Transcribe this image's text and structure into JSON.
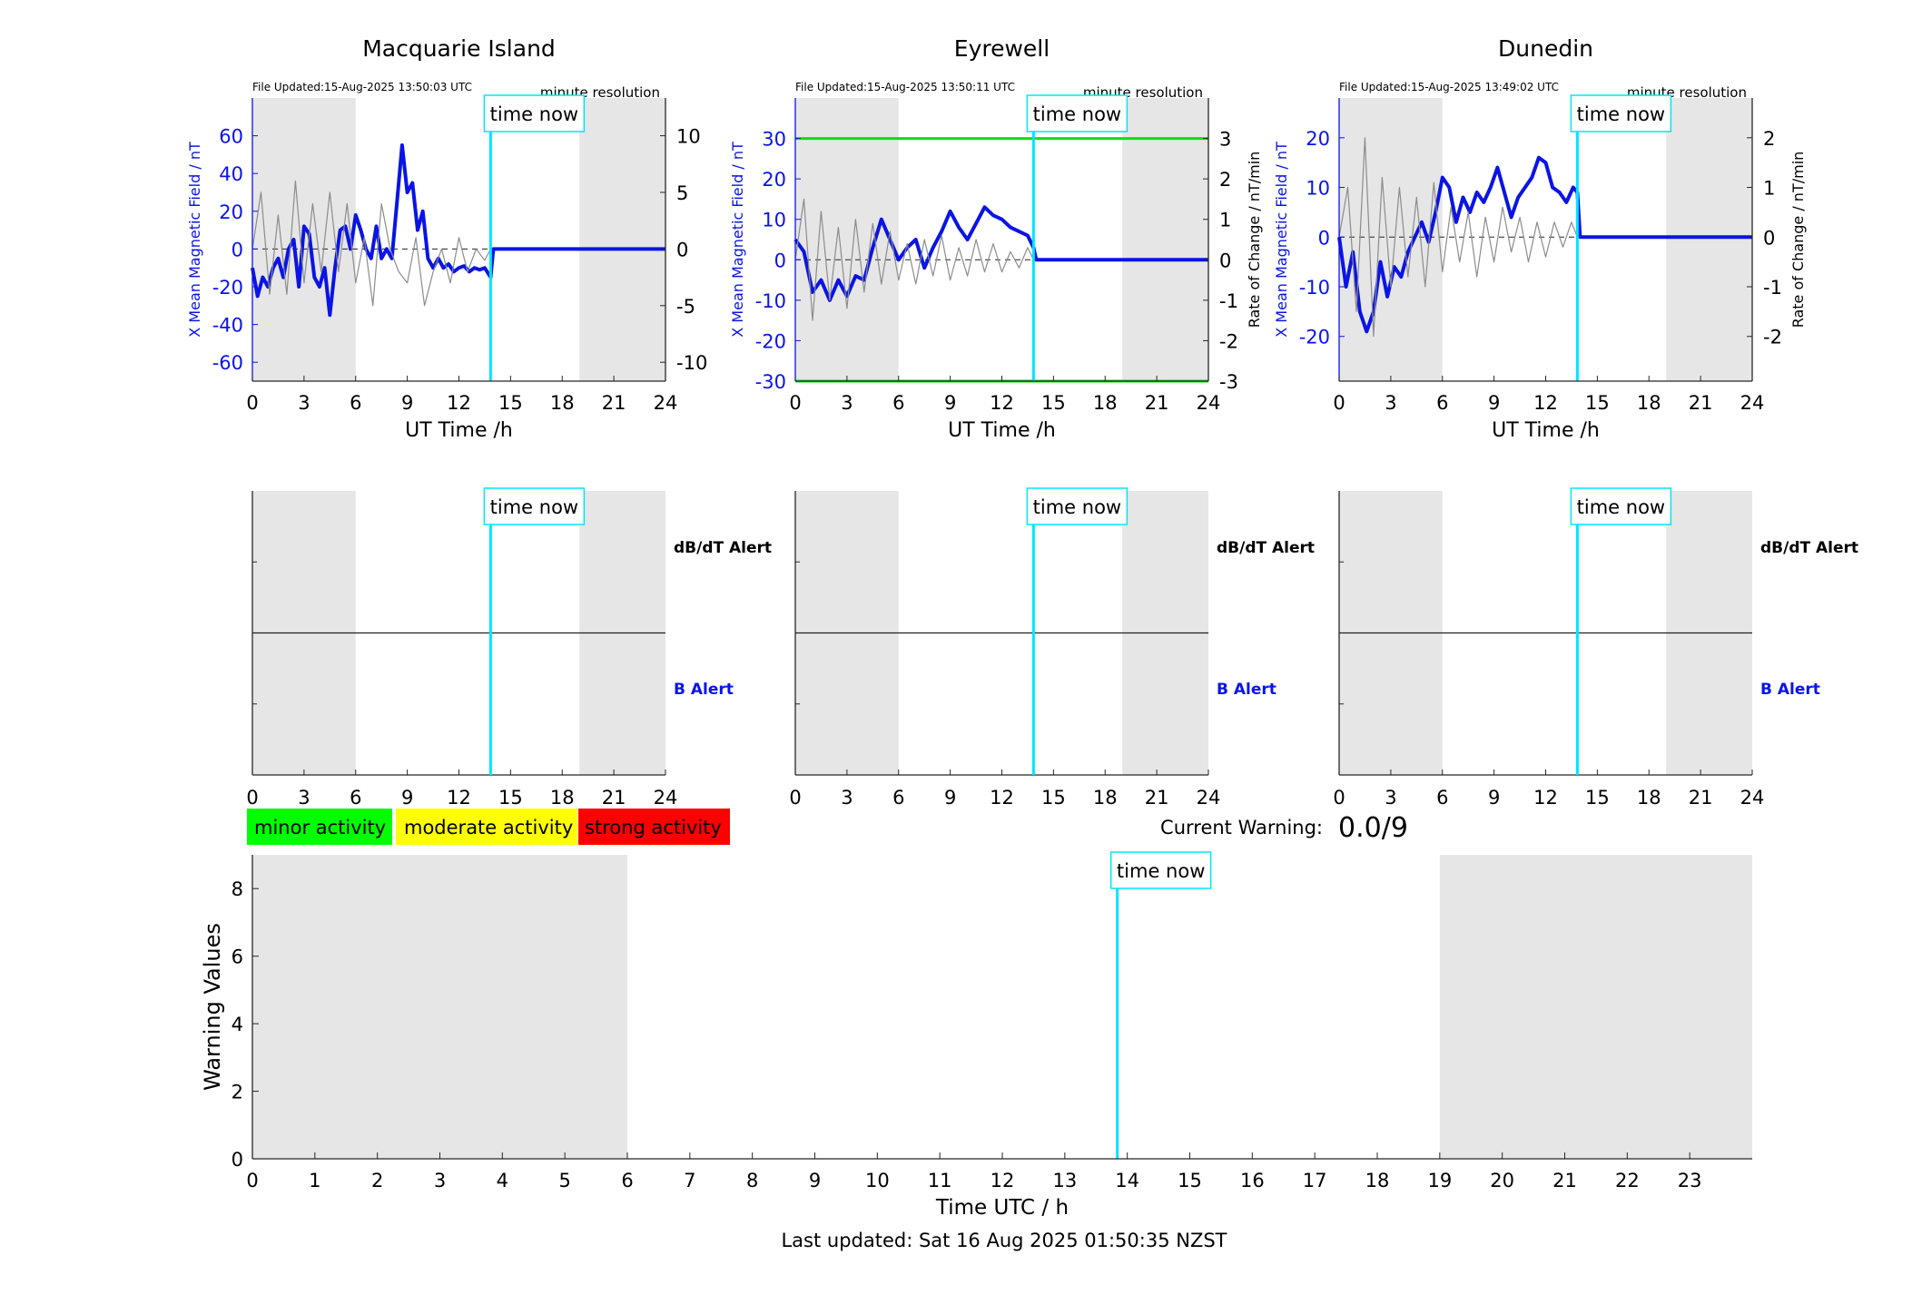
{
  "colors": {
    "panel_bg": "#ffffff",
    "night_shade": "#e6e6e6",
    "b_series": "#0a14e6",
    "dbdt_series": "#8c8c8c",
    "time_now": "#00e5ff",
    "threshold": "#00e600",
    "minor": "#00ff00",
    "moderate": "#ffff00",
    "strong": "#ff0000",
    "axis": "#262626"
  },
  "time_now_label": "time now",
  "time_now_h": 13.84,
  "alert_labels": {
    "dbdt": "dB/dT Alert",
    "b": "B Alert"
  },
  "activity_legend": [
    "minor activity",
    "moderate activity",
    "strong activity"
  ],
  "current_warning": {
    "label": "Current Warning:",
    "value": "0.0/9"
  },
  "footer": "Last updated: Sat 16 Aug 2025 01:50:35 NZST",
  "chart_data": [
    {
      "type": "line",
      "title": "Macquarie Island",
      "file_updated": "File Updated:15-Aug-2025 13:50:03 UTC",
      "resolution": "minute resolution",
      "xlabel": "UT Time /h",
      "ylabel_left": "X Mean Magnetic Field / nT",
      "ylabel_right": "",
      "xlim": [
        0,
        24
      ],
      "ylim_left": [
        -70,
        80
      ],
      "ylim_right": [
        -11.667,
        13.333
      ],
      "xticks": [
        0,
        3,
        6,
        9,
        12,
        15,
        18,
        21,
        24
      ],
      "yticks_left": [
        -60,
        -40,
        -20,
        0,
        20,
        40,
        60
      ],
      "yticks_right": [
        -10,
        -5,
        0,
        5,
        10
      ],
      "night_shading": [
        [
          0,
          6
        ],
        [
          19,
          24
        ]
      ],
      "threshold_lines": [],
      "series": [
        {
          "axis": "left",
          "x": [
            0,
            0.3,
            0.6,
            0.9,
            1.2,
            1.5,
            1.8,
            2.1,
            2.4,
            2.7,
            3.0,
            3.3,
            3.6,
            3.9,
            4.2,
            4.5,
            4.8,
            5.1,
            5.4,
            5.7,
            6.0,
            6.3,
            6.6,
            6.9,
            7.2,
            7.5,
            7.8,
            8.1,
            8.4,
            8.7,
            9.0,
            9.3,
            9.6,
            9.9,
            10.2,
            10.5,
            10.8,
            11.1,
            11.4,
            11.7,
            12.0,
            12.3,
            12.6,
            12.9,
            13.2,
            13.5,
            13.84,
            14.0,
            24.0
          ],
          "y": [
            -10,
            -25,
            -15,
            -20,
            -10,
            -5,
            -15,
            0,
            5,
            -20,
            12,
            8,
            -15,
            -20,
            -10,
            -35,
            -10,
            10,
            12,
            0,
            18,
            10,
            0,
            -5,
            12,
            -5,
            0,
            -5,
            25,
            55,
            30,
            35,
            10,
            20,
            -5,
            -10,
            -5,
            -10,
            -8,
            -12,
            -10,
            -9,
            -12,
            -10,
            -11,
            -10,
            -15,
            0,
            0
          ]
        },
        {
          "axis": "right",
          "x": [
            0,
            0.5,
            1.0,
            1.5,
            2.0,
            2.5,
            3.0,
            3.5,
            4.0,
            4.5,
            5.0,
            5.5,
            6.0,
            6.5,
            7.0,
            7.5,
            8.0,
            8.5,
            9.0,
            9.5,
            10.0,
            10.5,
            11.0,
            11.5,
            12.0,
            12.5,
            13.0,
            13.5,
            13.84
          ],
          "y": [
            0,
            5,
            -4,
            3,
            -4,
            6,
            -3,
            4,
            -2,
            5,
            -2,
            4,
            -3,
            1,
            -5,
            4,
            0,
            -2,
            -3,
            1,
            -5,
            -2,
            0,
            -3,
            1,
            -2,
            0,
            -1,
            0
          ]
        }
      ]
    },
    {
      "type": "line",
      "title": "Eyrewell",
      "file_updated": "File Updated:15-Aug-2025 13:50:11 UTC",
      "resolution": "minute resolution",
      "xlabel": "UT Time /h",
      "ylabel_left": "X Mean Magnetic Field / nT",
      "ylabel_right": "Rate of Change / nT/min",
      "xlim": [
        0,
        24
      ],
      "ylim_left": [
        -30,
        40
      ],
      "ylim_right": [
        -3,
        4
      ],
      "xticks": [
        0,
        3,
        6,
        9,
        12,
        15,
        18,
        21,
        24
      ],
      "yticks_left": [
        -30,
        -20,
        -10,
        0,
        10,
        20,
        30
      ],
      "yticks_right": [
        -3,
        -2,
        -1,
        0,
        1,
        2,
        3
      ],
      "night_shading": [
        [
          0,
          6
        ],
        [
          19,
          24
        ]
      ],
      "threshold_lines": [
        30,
        -30
      ],
      "series": [
        {
          "axis": "left",
          "x": [
            0,
            0.5,
            1.0,
            1.5,
            2.0,
            2.5,
            3.0,
            3.5,
            4.0,
            4.5,
            5.0,
            5.5,
            6.0,
            6.5,
            7.0,
            7.5,
            8.0,
            8.5,
            9.0,
            9.5,
            10.0,
            10.5,
            11.0,
            11.5,
            12.0,
            12.5,
            13.0,
            13.5,
            13.84,
            14.0,
            24.0
          ],
          "y": [
            5,
            2,
            -8,
            -5,
            -10,
            -5,
            -9,
            -4,
            -5,
            3,
            10,
            5,
            0,
            3,
            5,
            -2,
            3,
            7,
            12,
            8,
            5,
            9,
            13,
            11,
            10,
            8,
            7,
            6,
            3,
            0,
            0
          ]
        },
        {
          "axis": "right",
          "x": [
            0,
            0.5,
            1.0,
            1.5,
            2.0,
            2.5,
            3.0,
            3.5,
            4.0,
            4.5,
            5.0,
            5.5,
            6.0,
            6.5,
            7.0,
            7.5,
            8.0,
            8.5,
            9.0,
            9.5,
            10.0,
            10.5,
            11.0,
            11.5,
            12.0,
            12.5,
            13.0,
            13.5,
            13.84
          ],
          "y": [
            0,
            1.5,
            -1.5,
            1.2,
            -1,
            0.8,
            -1.2,
            1,
            -0.8,
            0.9,
            -0.6,
            0.7,
            -0.5,
            0.4,
            -0.6,
            0.5,
            -0.4,
            0.6,
            -0.5,
            0.3,
            -0.4,
            0.5,
            -0.3,
            0.4,
            -0.3,
            0.2,
            -0.2,
            0.3,
            0
          ]
        }
      ]
    },
    {
      "type": "line",
      "title": "Dunedin",
      "file_updated": "File Updated:15-Aug-2025 13:49:02 UTC",
      "resolution": "minute resolution",
      "xlabel": "UT Time /h",
      "ylabel_left": "X Mean Magnetic Field / nT",
      "ylabel_right": "Rate of Change / nT/min",
      "xlim": [
        0,
        24
      ],
      "ylim_left": [
        -29,
        28
      ],
      "ylim_right": [
        -2.9,
        2.8
      ],
      "xticks": [
        0,
        3,
        6,
        9,
        12,
        15,
        18,
        21,
        24
      ],
      "yticks_left": [
        -20,
        -10,
        0,
        10,
        20
      ],
      "yticks_right": [
        -2,
        -1,
        0,
        1,
        2
      ],
      "night_shading": [
        [
          0,
          6
        ],
        [
          19,
          24
        ]
      ],
      "threshold_lines": [],
      "series": [
        {
          "axis": "left",
          "x": [
            0,
            0.4,
            0.8,
            1.2,
            1.6,
            2.0,
            2.4,
            2.8,
            3.2,
            3.6,
            4.0,
            4.4,
            4.8,
            5.2,
            5.6,
            6.0,
            6.4,
            6.8,
            7.2,
            7.6,
            8.0,
            8.4,
            8.8,
            9.2,
            9.6,
            10.0,
            10.4,
            10.8,
            11.2,
            11.6,
            12.0,
            12.4,
            12.8,
            13.2,
            13.6,
            13.84,
            14.0,
            24.0
          ],
          "y": [
            0,
            -10,
            -3,
            -15,
            -19,
            -15,
            -5,
            -12,
            -6,
            -8,
            -3,
            0,
            3,
            -1,
            5,
            12,
            10,
            3,
            8,
            5,
            9,
            7,
            10,
            14,
            9,
            4,
            8,
            10,
            12,
            16,
            15,
            10,
            9,
            7,
            10,
            9,
            0,
            0
          ]
        },
        {
          "axis": "right",
          "x": [
            0,
            0.5,
            1.0,
            1.5,
            2.0,
            2.5,
            3.0,
            3.5,
            4.0,
            4.5,
            5.0,
            5.5,
            6.0,
            6.5,
            7.0,
            7.5,
            8.0,
            8.5,
            9.0,
            9.5,
            10.0,
            10.5,
            11.0,
            11.5,
            12.0,
            12.5,
            13.0,
            13.5,
            13.84
          ],
          "y": [
            0,
            1,
            -1.5,
            2,
            -2,
            1.2,
            -1,
            1,
            -0.8,
            0.8,
            -1,
            1.1,
            -0.7,
            0.6,
            -0.5,
            0.5,
            -0.8,
            0.4,
            -0.5,
            0.6,
            -0.3,
            0.4,
            -0.5,
            0.3,
            -0.4,
            0.3,
            -0.2,
            0.3,
            0
          ]
        }
      ]
    },
    {
      "type": "line",
      "title": "",
      "xlabel": "Time UTC / h",
      "ylabel": "Warning Values",
      "xlim": [
        0,
        24
      ],
      "ylim": [
        0,
        9
      ],
      "xticks": [
        0,
        1,
        2,
        3,
        4,
        5,
        6,
        7,
        8,
        9,
        10,
        11,
        12,
        13,
        14,
        15,
        16,
        17,
        18,
        19,
        20,
        21,
        22,
        23
      ],
      "yticks": [
        0,
        2,
        4,
        6,
        8
      ],
      "night_shading": [
        [
          0,
          6
        ],
        [
          19,
          24
        ]
      ],
      "series": []
    }
  ]
}
